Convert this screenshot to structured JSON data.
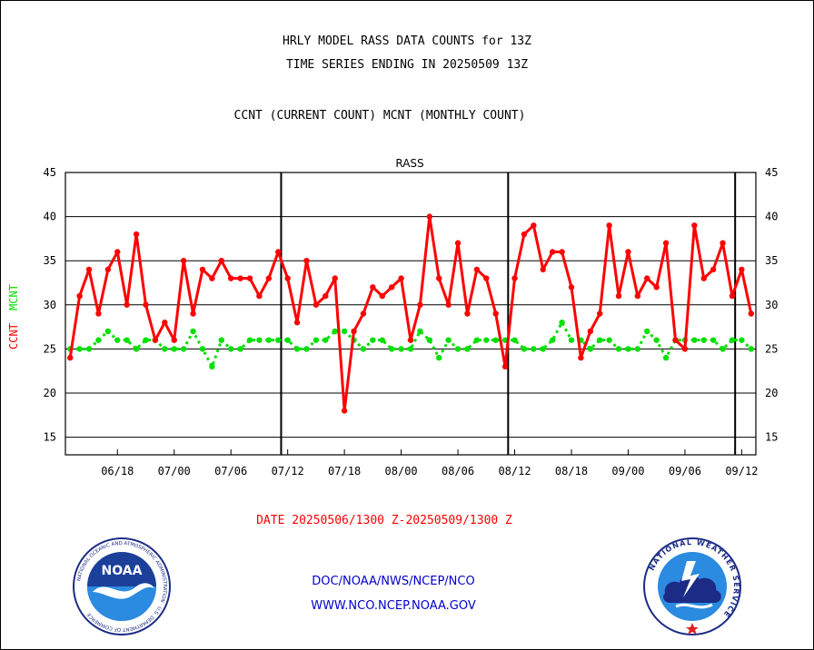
{
  "header": {
    "line1": "HRLY MODEL RASS DATA COUNTS for 13Z",
    "line2": "TIME SERIES ENDING IN 20250509 13Z",
    "line3": "CCNT (CURRENT COUNT) MCNT (MONTHLY COUNT)"
  },
  "axis": {
    "y_left_ccnt": "CCNT",
    "y_left_mcnt": "MCNT"
  },
  "date_label": "DATE 20250506/1300 Z-20250509/1300 Z",
  "credits": {
    "line1": "DOC/NOAA/NWS/NCEP/NCO",
    "line2": "WWW.NCO.NCEP.NOAA.GOV"
  },
  "logos": {
    "left": {
      "text": "NOAA",
      "ring": "NATIONAL OCEANIC AND ATMOSPHERIC ADMINISTRATION · U.S. DEPARTMENT OF COMMERCE"
    },
    "right": {
      "ring": "NATIONAL WEATHER SERVICE"
    }
  },
  "colors": {
    "ccnt": "#ff0000",
    "mcnt": "#00e000",
    "panel_title": "#0000cc",
    "credit": "#0000cc"
  },
  "chart_data": {
    "type": "line",
    "title": "RASS",
    "ylim": [
      13,
      45
    ],
    "yticks": [
      15,
      20,
      25,
      30,
      35,
      40,
      45
    ],
    "x_tick_labels": [
      "06/18",
      "07/00",
      "07/06",
      "07/12",
      "07/18",
      "08/00",
      "08/06",
      "08/12",
      "08/18",
      "09/00",
      "09/06",
      "09/12"
    ],
    "x_tick_positions": [
      5,
      11,
      17,
      23,
      29,
      35,
      41,
      47,
      53,
      59,
      65,
      71
    ],
    "day_separators": [
      23,
      47,
      71
    ],
    "grid": "horizontal",
    "series": [
      {
        "name": "CCNT",
        "values": [
          24,
          31,
          34,
          29,
          34,
          36,
          30,
          38,
          30,
          26,
          28,
          26,
          35,
          29,
          34,
          33,
          35,
          33,
          33,
          33,
          31,
          33,
          36,
          33,
          28,
          35,
          30,
          31,
          33,
          18,
          27,
          29,
          32,
          31,
          32,
          33,
          26,
          30,
          40,
          33,
          30,
          37,
          29,
          34,
          33,
          29,
          23,
          33,
          38,
          39,
          34,
          36,
          36,
          32,
          24,
          27,
          29,
          39,
          31,
          36,
          31,
          33,
          32,
          37,
          26,
          25,
          39,
          33,
          34,
          37,
          31,
          34,
          29
        ]
      },
      {
        "name": "MCNT",
        "values": [
          25,
          25,
          25,
          26,
          27,
          26,
          26,
          25,
          26,
          26,
          25,
          25,
          25,
          27,
          25,
          23,
          26,
          25,
          25,
          26,
          26,
          26,
          26,
          26,
          25,
          25,
          26,
          26,
          27,
          27,
          26,
          25,
          26,
          26,
          25,
          25,
          25,
          27,
          26,
          24,
          26,
          25,
          25,
          26,
          26,
          26,
          26,
          26,
          25,
          25,
          25,
          26,
          28,
          26,
          26,
          25,
          26,
          26,
          25,
          25,
          25,
          27,
          26,
          24,
          26,
          26,
          26,
          26,
          26,
          25,
          26,
          26,
          25
        ]
      }
    ]
  }
}
